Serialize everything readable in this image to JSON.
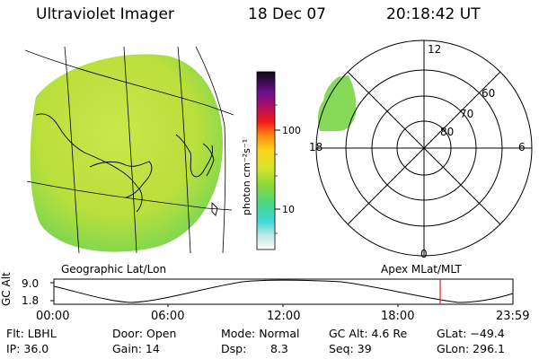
{
  "header": {
    "title": "Ultraviolet Imager",
    "date": "18 Dec 07",
    "time": "20:18:42 UT"
  },
  "colorbar": {
    "unit_label": "photon cm⁻²s⁻¹",
    "ticks": [
      "100",
      "10"
    ]
  },
  "panels": {
    "geo_label": "Geographic Lat/Lon",
    "apex_label": "Apex  MLat/MLT"
  },
  "polar": {
    "mlt_labels": {
      "top": "12",
      "left": "18",
      "right": "6",
      "bottom": "0"
    },
    "lat_labels": [
      "60",
      "70",
      "80"
    ]
  },
  "altitude_plot": {
    "ylabel": "GC Alt",
    "y_ticks": [
      "9.0",
      "1.8"
    ],
    "x_ticks": [
      "00:00",
      "06:00",
      "12:00",
      "18:00",
      "23:59"
    ],
    "marker_color": "#e0202a"
  },
  "status": {
    "flt": "Flt: LBHL",
    "ip": "IP: 36.0",
    "door": "Door: Open",
    "gain": "Gain: 14",
    "mode": "Mode: Normal",
    "dsp_label": "Dsp:",
    "dsp_value": "8.3",
    "gc_alt": "GC Alt: 4.6 Re",
    "seq": "Seq: 39",
    "glat": "GLat: −49.4",
    "glon": "GLon: 296.1"
  }
}
